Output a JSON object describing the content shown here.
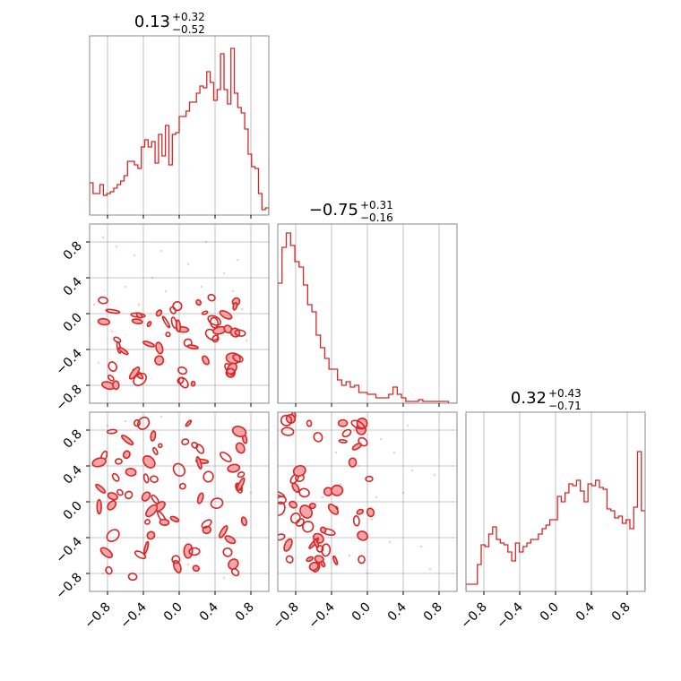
{
  "chart_data": {
    "type": "corner",
    "color": "#d62728",
    "fill_color": "#f4a5a6",
    "grid": true,
    "range": [
      -1,
      1
    ],
    "tick_values": [
      -0.8,
      -0.4,
      0.0,
      0.4,
      0.8
    ],
    "tick_labels": [
      "−0.8",
      "−0.4",
      "0.0",
      "0.4",
      "0.8"
    ],
    "diagonal": [
      {
        "title_value": "0.13",
        "title_plus": "+0.32",
        "title_minus": "−0.52",
        "hist": [
          0.18,
          0.12,
          0.12,
          0.17,
          0.11,
          0.12,
          0.13,
          0.15,
          0.17,
          0.19,
          0.22,
          0.3,
          0.3,
          0.28,
          0.26,
          0.38,
          0.42,
          0.38,
          0.41,
          0.29,
          0.45,
          0.33,
          0.5,
          0.28,
          0.45,
          0.46,
          0.55,
          0.55,
          0.58,
          0.63,
          0.63,
          0.68,
          0.72,
          0.71,
          0.8,
          0.74,
          0.64,
          0.7,
          0.9,
          0.7,
          0.62,
          0.93,
          0.68,
          0.6,
          0.57,
          0.48,
          0.34,
          0.27,
          0.26,
          0.12,
          0.03,
          0.04
        ]
      },
      {
        "title_value": "−0.75",
        "title_plus": "+0.31",
        "title_minus": "−0.16",
        "hist": [
          0.67,
          0.87,
          0.95,
          0.88,
          0.79,
          0.76,
          0.66,
          0.55,
          0.51,
          0.38,
          0.31,
          0.25,
          0.19,
          0.19,
          0.13,
          0.1,
          0.12,
          0.09,
          0.1,
          0.06,
          0.06,
          0.05,
          0.05,
          0.03,
          0.03,
          0.03,
          0.05,
          0.09,
          0.05,
          0.03,
          0.01,
          0.01,
          0.01,
          0.02,
          0.01,
          0.01,
          0.01,
          0.01,
          0.01,
          0.01,
          0.0,
          0.0
        ]
      },
      {
        "title_value": "0.32",
        "title_plus": "+0.43",
        "title_minus": "−0.71",
        "hist": [
          0.04,
          0.04,
          0.04,
          0.15,
          0.26,
          0.25,
          0.32,
          0.36,
          0.29,
          0.27,
          0.26,
          0.22,
          0.17,
          0.27,
          0.22,
          0.25,
          0.27,
          0.29,
          0.29,
          0.32,
          0.35,
          0.37,
          0.4,
          0.4,
          0.53,
          0.5,
          0.55,
          0.6,
          0.59,
          0.62,
          0.56,
          0.5,
          0.6,
          0.59,
          0.62,
          0.58,
          0.57,
          0.46,
          0.45,
          0.41,
          0.42,
          0.38,
          0.4,
          0.35,
          0.47,
          0.78,
          0.45
        ]
      }
    ],
    "panels": [
      {
        "row": 1,
        "col": 0,
        "inner_region": {
          "x": [
            -0.9,
            0.75
          ],
          "y": [
            -0.85,
            0.2
          ]
        },
        "scatter": [
          [
            -0.85,
            0.85
          ],
          [
            -0.7,
            0.75
          ],
          [
            -0.5,
            0.65
          ],
          [
            -0.2,
            0.7
          ],
          [
            0.3,
            0.8
          ],
          [
            0.65,
            0.6
          ],
          [
            -0.95,
            0.1
          ],
          [
            -0.6,
            0.3
          ],
          [
            -0.3,
            0.4
          ],
          [
            0.1,
            0.55
          ],
          [
            0.5,
            0.45
          ],
          [
            -0.75,
            -0.2
          ],
          [
            0.7,
            0.05
          ],
          [
            -0.9,
            -0.55
          ],
          [
            0.75,
            -0.3
          ],
          [
            -0.45,
            0.1
          ],
          [
            -0.15,
            0.25
          ],
          [
            0.25,
            0.3
          ],
          [
            0.6,
            0.25
          ]
        ]
      },
      {
        "row": 2,
        "col": 0,
        "inner_region": {
          "x": [
            -0.9,
            0.75
          ],
          "y": [
            -0.85,
            0.95
          ]
        },
        "scatter": [
          [
            -0.8,
            0.85
          ],
          [
            -0.6,
            0.9
          ],
          [
            -0.9,
            0.4
          ],
          [
            -0.85,
            -0.8
          ],
          [
            0.6,
            -0.7
          ],
          [
            0.75,
            0.7
          ],
          [
            -0.2,
            0.95
          ],
          [
            0.5,
            -0.85
          ],
          [
            -0.75,
            0.1
          ],
          [
            0.8,
            0.1
          ],
          [
            -0.6,
            0.7
          ],
          [
            0.1,
            -0.7
          ]
        ]
      },
      {
        "row": 2,
        "col": 1,
        "inner_region": {
          "x": [
            -1.0,
            0.05
          ],
          "y": [
            -0.75,
            1.0
          ]
        },
        "scatter": [
          [
            -0.55,
            -0.55
          ],
          [
            -0.3,
            0.2
          ],
          [
            -0.1,
            0.4
          ],
          [
            0.15,
            0.7
          ],
          [
            0.4,
            0.1
          ],
          [
            -0.4,
            -0.35
          ],
          [
            0.05,
            -0.2
          ],
          [
            0.6,
            -0.5
          ],
          [
            0.7,
            -0.75
          ],
          [
            -0.2,
            -0.6
          ],
          [
            0.3,
            0.55
          ],
          [
            -0.5,
            0.05
          ],
          [
            0.1,
            0.05
          ],
          [
            0.5,
            0.35
          ],
          [
            -0.15,
            0.8
          ],
          [
            0.25,
            -0.45
          ],
          [
            0.45,
            0.85
          ],
          [
            -0.35,
            0.55
          ],
          [
            0.75,
            0.3
          ],
          [
            0.0,
            -0.8
          ]
        ]
      }
    ]
  }
}
